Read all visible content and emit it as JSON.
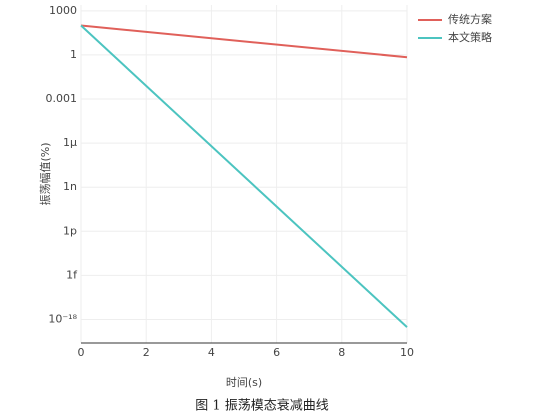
{
  "chart_data": {
    "type": "line",
    "x_label": "时间(s)",
    "y_label": "振荡幅值(%)",
    "caption": "图 1 振荡模态衰减曲线",
    "x": [
      0,
      10
    ],
    "series": [
      {
        "name": "传统方案",
        "color": "#e0605a",
        "values": [
          100,
          0.7
        ]
      },
      {
        "name": "本文策略",
        "color": "#4cc4c0",
        "values": [
          100,
          3e-19
        ]
      }
    ],
    "xlim": [
      0,
      10
    ],
    "xticks": [
      0,
      2,
      4,
      6,
      8,
      10
    ],
    "ylim": [
      2.5e-20,
      2500
    ],
    "log_y": true,
    "yticks": [
      1000,
      1,
      0.001,
      {
        "value": 1e-06,
        "label": "1μ"
      },
      {
        "value": 1e-09,
        "label": "1n"
      },
      {
        "value": 1e-12,
        "label": "1p"
      },
      {
        "value": 1e-15,
        "label": "1f"
      },
      {
        "value": 1e-18,
        "label": "10⁻¹⁸"
      }
    ],
    "grid": true,
    "legend": "top-right"
  }
}
